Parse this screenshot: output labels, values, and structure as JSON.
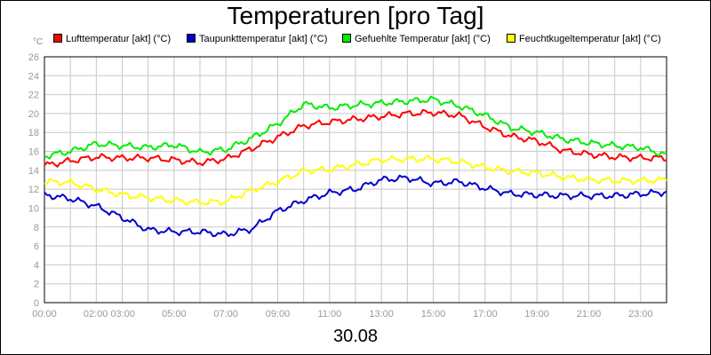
{
  "chart_data": {
    "type": "line",
    "title": "Temperaturen [pro Tag]",
    "unit_label": "°C",
    "xlabel": "30.08",
    "x_tick_labels": [
      "00:00",
      "02:00 03:00",
      "05:00",
      "07:00",
      "09:00",
      "11:00",
      "13:00",
      "15:00",
      "17:00",
      "19:00",
      "21:00",
      "23:00"
    ],
    "x_tick_hours": [
      0,
      2.5,
      5,
      7,
      9,
      11,
      13,
      15,
      17,
      19,
      21,
      23
    ],
    "y_tick_labels": [
      "0",
      "2",
      "4",
      "6",
      "8",
      "10",
      "12",
      "14",
      "16",
      "18",
      "20",
      "22",
      "24",
      "26"
    ],
    "xlim": [
      0,
      24
    ],
    "ylim": [
      0,
      26
    ],
    "grid": true,
    "legend_position": "top",
    "x": [
      0,
      1,
      2,
      3,
      4,
      5,
      6,
      7,
      8,
      9,
      10,
      11,
      12,
      13,
      14,
      15,
      16,
      17,
      18,
      19,
      20,
      21,
      22,
      23,
      24
    ],
    "series": [
      {
        "name": "Lufttemperatur [akt] (°C)",
        "color": "#ff0000",
        "values": [
          14.5,
          15.0,
          15.4,
          15.3,
          15.3,
          15.1,
          14.8,
          15.2,
          16.3,
          17.5,
          18.7,
          19.1,
          19.4,
          19.7,
          20.0,
          20.1,
          19.8,
          18.6,
          17.6,
          17.1,
          16.1,
          15.7,
          15.4,
          15.3,
          15.3
        ]
      },
      {
        "name": "Taupunkttemperatur [akt] (°C)",
        "color": "#0000cc",
        "values": [
          11.4,
          11.0,
          10.2,
          9.0,
          7.7,
          7.5,
          7.5,
          7.2,
          7.8,
          9.7,
          10.8,
          11.6,
          12.0,
          13.0,
          13.2,
          12.6,
          12.8,
          12.1,
          11.5,
          11.4,
          11.3,
          11.3,
          11.3,
          11.5,
          11.7
        ]
      },
      {
        "name": "Gefuehlte Temperatur [akt] (°C)",
        "color": "#00ee00",
        "values": [
          15.5,
          16.0,
          16.8,
          16.6,
          16.4,
          16.7,
          15.9,
          16.2,
          17.4,
          18.9,
          21.0,
          20.6,
          20.9,
          21.1,
          21.3,
          21.5,
          20.8,
          19.8,
          18.5,
          18.0,
          17.3,
          16.9,
          16.6,
          16.4,
          15.6
        ]
      },
      {
        "name": "Feuchtkugeltemperatur [akt] (°C)",
        "color": "#ffff00",
        "values": [
          12.8,
          12.7,
          12.0,
          11.4,
          11.1,
          10.8,
          10.6,
          10.7,
          11.9,
          12.8,
          13.9,
          14.1,
          14.6,
          15.1,
          15.2,
          15.2,
          14.9,
          14.3,
          13.9,
          13.7,
          13.3,
          13.0,
          12.9,
          12.9,
          13.0
        ]
      }
    ]
  }
}
